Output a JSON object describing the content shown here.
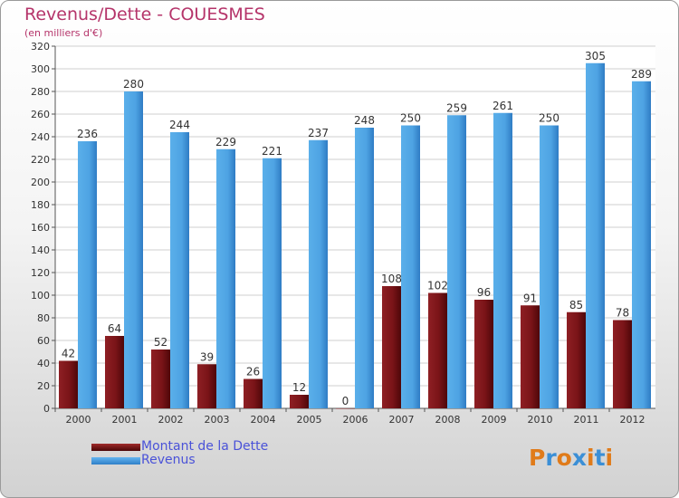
{
  "chart_data": {
    "type": "bar",
    "title": "Revenus/Dette - COUESMES",
    "subtitle": "(en milliers d'€)",
    "xlabel": "",
    "ylabel": "",
    "ylim": [
      0,
      320
    ],
    "ytick_step": 20,
    "grid": true,
    "legend_position": "bottom-left",
    "categories": [
      "2000",
      "2001",
      "2002",
      "2003",
      "2004",
      "2005",
      "2006",
      "2007",
      "2008",
      "2009",
      "2010",
      "2011",
      "2012"
    ],
    "series": [
      {
        "name": "Montant de la Dette",
        "color": "#6b0f14",
        "values": [
          42,
          64,
          52,
          39,
          26,
          12,
          0,
          108,
          102,
          96,
          91,
          85,
          78
        ]
      },
      {
        "name": "Revenus",
        "color": "#4ea0e0",
        "values": [
          236,
          280,
          244,
          229,
          221,
          237,
          248,
          250,
          259,
          261,
          250,
          305,
          289
        ]
      }
    ]
  },
  "logo": {
    "text": "Proxiti",
    "colors": [
      "#e07b1a",
      "#3b8fd6",
      "#e07b1a",
      "#3b8fd6",
      "#e07b1a",
      "#3b8fd6",
      "#e07b1a"
    ]
  }
}
